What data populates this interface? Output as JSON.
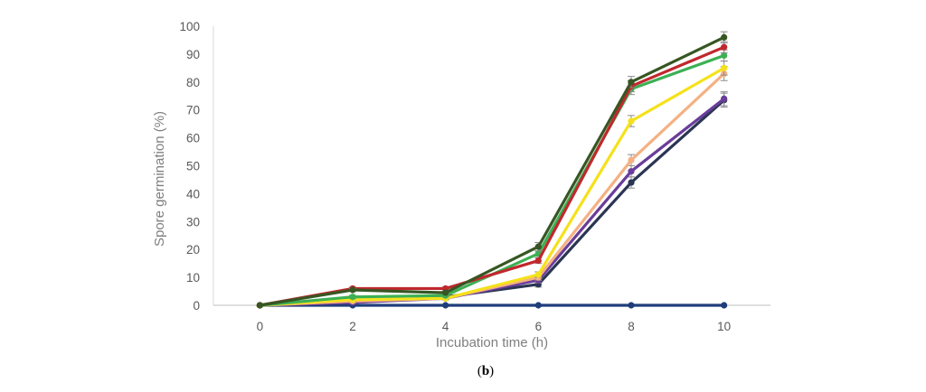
{
  "chart_data": {
    "type": "line",
    "title": "",
    "xlabel": "Incubation time (h)",
    "ylabel": "Spore germination (%)",
    "x": [
      0,
      2,
      4,
      6,
      8,
      10
    ],
    "xticks": [
      "0",
      "2",
      "4",
      "6",
      "8",
      "10"
    ],
    "yticks": [
      "0",
      "10",
      "20",
      "30",
      "40",
      "50",
      "60",
      "70",
      "80",
      "90",
      "100"
    ],
    "xlim": [
      -1,
      11
    ],
    "ylim": [
      0,
      100
    ],
    "grid": false,
    "legend": "none",
    "error_bars": true,
    "series": [
      {
        "color": "#1f3d7a",
        "values": [
          0,
          0,
          0,
          0,
          0,
          0
        ],
        "errors": [
          0,
          0,
          0,
          0,
          0,
          0
        ]
      },
      {
        "color": "#2b3553",
        "values": [
          0,
          1,
          3,
          7.5,
          44,
          73.5
        ],
        "errors": [
          0,
          0.5,
          0.5,
          1,
          2,
          2.5
        ]
      },
      {
        "color": "#6a3d9a",
        "values": [
          0,
          1,
          2.5,
          9,
          48,
          74
        ],
        "errors": [
          0,
          0.5,
          0.5,
          1,
          2,
          2.5
        ]
      },
      {
        "color": "#f4b183",
        "values": [
          0,
          1.5,
          2.5,
          10,
          52,
          83
        ],
        "errors": [
          0,
          0.5,
          0.5,
          1,
          2,
          2.5
        ]
      },
      {
        "color": "#f5e11b",
        "values": [
          0,
          2,
          2.5,
          11,
          66,
          85
        ],
        "errors": [
          0,
          0.5,
          0.5,
          1,
          2,
          2.5
        ]
      },
      {
        "color": "#3cb054",
        "values": [
          0,
          3,
          3.5,
          18.5,
          77.5,
          89.5
        ],
        "errors": [
          0,
          0.5,
          0.5,
          1,
          2,
          2
        ]
      },
      {
        "color": "#c0282d",
        "values": [
          0,
          6,
          6,
          16,
          78.5,
          92.5
        ],
        "errors": [
          0,
          0.5,
          0.5,
          1,
          2,
          2
        ]
      },
      {
        "color": "#375623",
        "values": [
          0,
          5.5,
          4.5,
          21,
          80,
          96
        ],
        "errors": [
          0,
          0.5,
          0.5,
          1.5,
          2,
          2
        ]
      }
    ]
  },
  "caption": {
    "open": "(",
    "letter": "b",
    "close": ")"
  }
}
